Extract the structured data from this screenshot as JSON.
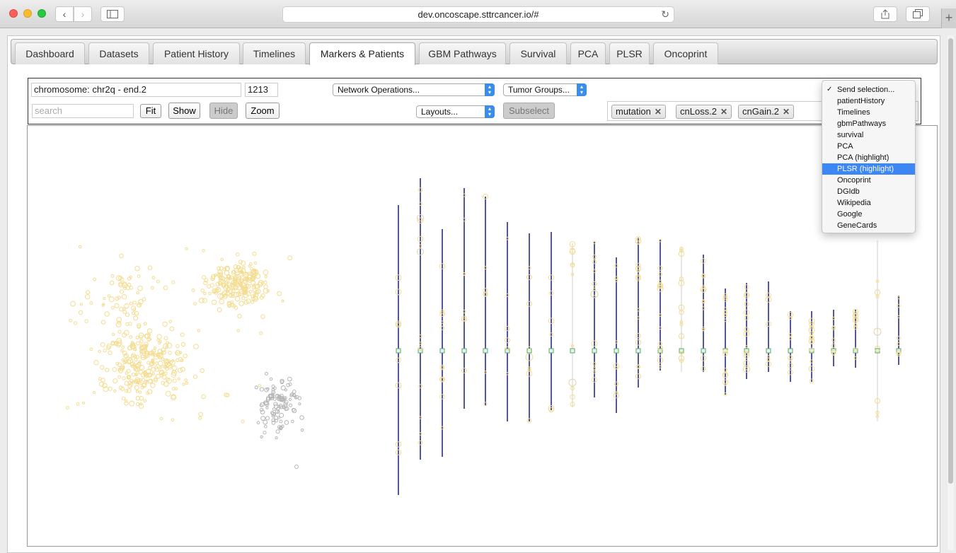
{
  "browser": {
    "url": "dev.oncoscape.sttrcancer.io/#",
    "back_icon": "chevron-left-icon",
    "forward_icon": "chevron-right-icon",
    "reload_icon": "reload-icon",
    "new_tab_label": "+"
  },
  "tabs": [
    {
      "label": "Dashboard",
      "active": false
    },
    {
      "label": "Datasets",
      "active": false
    },
    {
      "label": "Patient History",
      "active": false
    },
    {
      "label": "Timelines",
      "active": false
    },
    {
      "label": "Markers & Patients",
      "active": true
    },
    {
      "label": "GBM Pathways",
      "active": false
    },
    {
      "label": "Survival",
      "active": false
    },
    {
      "label": "PCA",
      "active": false
    },
    {
      "label": "PLSR",
      "active": false
    },
    {
      "label": "Oncoprint",
      "active": false
    }
  ],
  "controls": {
    "node_info": "chromosome: chr2q - end.2",
    "count": "1213",
    "search_placeholder": "search",
    "fit_label": "Fit",
    "show_label": "Show",
    "hide_label": "Hide",
    "zoom_label": "Zoom",
    "network_ops": "Network Operations...",
    "tumor_groups": "Tumor Groups...",
    "layouts": "Layouts...",
    "subselect_label": "Subselect"
  },
  "tags": [
    "mutation",
    "cnLoss.2",
    "cnGain.2"
  ],
  "send_menu": {
    "items": [
      {
        "label": "Send selection...",
        "checked": true,
        "selected": false
      },
      {
        "label": "patientHistory",
        "checked": false,
        "selected": false
      },
      {
        "label": "Timelines",
        "checked": false,
        "selected": false
      },
      {
        "label": "gbmPathways",
        "checked": false,
        "selected": false
      },
      {
        "label": "survival",
        "checked": false,
        "selected": false
      },
      {
        "label": "PCA",
        "checked": false,
        "selected": false
      },
      {
        "label": "PCA (highlight)",
        "checked": false,
        "selected": false
      },
      {
        "label": "PLSR (highlight)",
        "checked": false,
        "selected": true
      },
      {
        "label": "Oncoprint",
        "checked": false,
        "selected": false
      },
      {
        "label": "DGIdb",
        "checked": false,
        "selected": false
      },
      {
        "label": "Wikipedia",
        "checked": false,
        "selected": false
      },
      {
        "label": "Google",
        "checked": false,
        "selected": false
      },
      {
        "label": "GeneCards",
        "checked": false,
        "selected": false
      }
    ]
  },
  "colors": {
    "patient_node": "#f3dc8f",
    "patient_node_gray": "#b5b5b5",
    "chromosome_line": "#1a1f77",
    "centromere": "#5aa86d",
    "menu_highlight": "#3d87f5"
  }
}
